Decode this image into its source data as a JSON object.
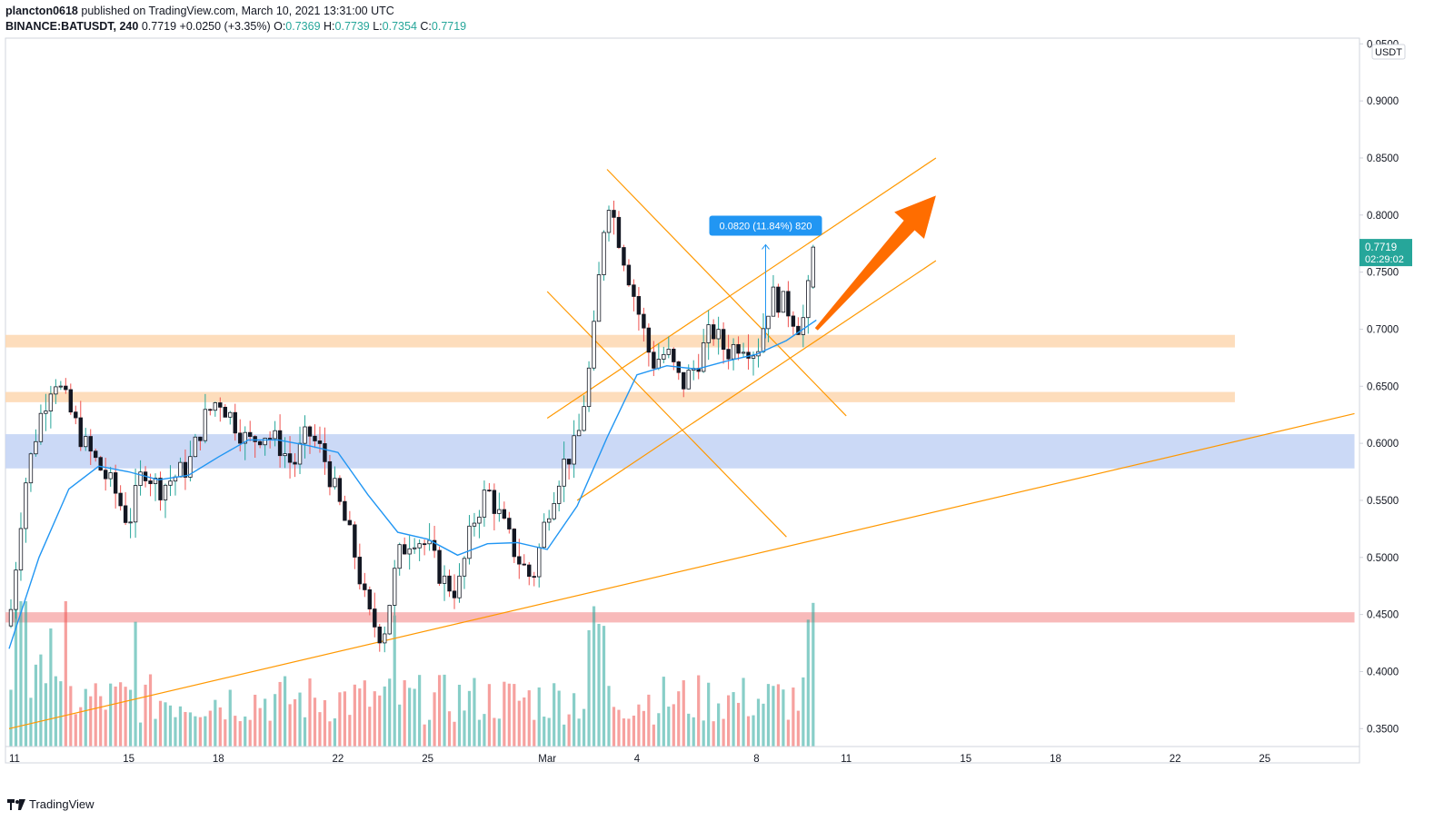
{
  "header": {
    "author": "plancton0618",
    "published_text": "published on TradingView.com, March 10, 2021 13:31:00 UTC",
    "symbol": "BINANCE:BATUSDT, 240",
    "last": "0.7719",
    "change": "+0.0250 (+3.35%)",
    "o_label": "O:",
    "o_value": "0.7369",
    "h_label": "H:",
    "h_value": "0.7739",
    "l_label": "L:",
    "l_value": "0.7354",
    "c_label": "C:",
    "c_value": "0.7719"
  },
  "footer": {
    "brand": "TradingView"
  },
  "colors": {
    "up": "#26a69a",
    "down": "#ef5350",
    "ema": "#2196f3",
    "trend": "#ff9800",
    "resistance_zone": "#fdd9b5",
    "support_zone": "#c5d5f5",
    "low_zone": "#f7b3b3",
    "arrow": "#ff6d00"
  },
  "chart_data": {
    "type": "candlestick",
    "interval": "240",
    "y_axis": {
      "unit": "USDT",
      "ylim": [
        0.32,
        0.955
      ],
      "ticks": [
        "0.9500",
        "0.9000",
        "0.8500",
        "0.8000",
        "0.7500",
        "0.7000",
        "0.6500",
        "0.6000",
        "0.5500",
        "0.5000",
        "0.4500",
        "0.4000",
        "0.3500"
      ]
    },
    "x_axis": {
      "ticks": [
        {
          "label": "11",
          "date": "2021-02-11"
        },
        {
          "label": "15",
          "date": "2021-02-15"
        },
        {
          "label": "18",
          "date": "2021-02-18"
        },
        {
          "label": "22",
          "date": "2021-02-22"
        },
        {
          "label": "25",
          "date": "2021-02-25"
        },
        {
          "label": "Mar",
          "date": "2021-03-01"
        },
        {
          "label": "4",
          "date": "2021-03-04"
        },
        {
          "label": "8",
          "date": "2021-03-08"
        },
        {
          "label": "11",
          "date": "2021-03-11"
        },
        {
          "label": "15",
          "date": "2021-03-15"
        },
        {
          "label": "18",
          "date": "2021-03-18"
        },
        {
          "label": "22",
          "date": "2021-03-22"
        },
        {
          "label": "25",
          "date": "2021-03-25"
        }
      ]
    },
    "last_price": {
      "value": "0.7719",
      "countdown": "02:29:02"
    },
    "measure": {
      "text": "0.0820 (11.84%) 820",
      "from": 0.692,
      "to": 0.774,
      "date": "2021-03-08"
    },
    "price_path": [
      [
        "2021-02-11",
        0.44
      ],
      [
        "2021-02-11",
        0.56
      ],
      [
        "2021-02-12",
        0.62
      ],
      [
        "2021-02-12",
        0.66
      ],
      [
        "2021-02-13",
        0.63
      ],
      [
        "2021-02-13",
        0.6
      ],
      [
        "2021-02-14",
        0.58
      ],
      [
        "2021-02-15",
        0.56
      ],
      [
        "2021-02-15",
        0.53
      ],
      [
        "2021-02-16",
        0.58
      ],
      [
        "2021-02-16",
        0.56
      ],
      [
        "2021-02-17",
        0.57
      ],
      [
        "2021-02-17",
        0.58
      ],
      [
        "2021-02-18",
        0.62
      ],
      [
        "2021-02-18",
        0.64
      ],
      [
        "2021-02-19",
        0.62
      ],
      [
        "2021-02-19",
        0.6
      ],
      [
        "2021-02-20",
        0.61
      ],
      [
        "2021-02-20",
        0.6
      ],
      [
        "2021-02-21",
        0.58
      ],
      [
        "2021-02-21",
        0.61
      ],
      [
        "2021-02-22",
        0.59
      ],
      [
        "2021-02-22",
        0.55
      ],
      [
        "2021-02-23",
        0.51
      ],
      [
        "2021-02-23",
        0.45
      ],
      [
        "2021-02-24",
        0.43
      ],
      [
        "2021-02-24",
        0.5
      ],
      [
        "2021-02-25",
        0.52
      ],
      [
        "2021-02-25",
        0.51
      ],
      [
        "2021-02-26",
        0.48
      ],
      [
        "2021-02-26",
        0.47
      ],
      [
        "2021-02-27",
        0.53
      ],
      [
        "2021-02-27",
        0.56
      ],
      [
        "2021-02-28",
        0.53
      ],
      [
        "2021-02-28",
        0.5
      ],
      [
        "2021-03-01",
        0.48
      ],
      [
        "2021-03-01",
        0.54
      ],
      [
        "2021-03-02",
        0.58
      ],
      [
        "2021-03-02",
        0.6
      ],
      [
        "2021-03-03",
        0.68
      ],
      [
        "2021-03-03",
        0.82
      ],
      [
        "2021-03-04",
        0.77
      ],
      [
        "2021-03-04",
        0.72
      ],
      [
        "2021-03-05",
        0.67
      ],
      [
        "2021-03-05",
        0.68
      ],
      [
        "2021-03-06",
        0.65
      ],
      [
        "2021-03-06",
        0.67
      ],
      [
        "2021-03-07",
        0.7
      ],
      [
        "2021-03-07",
        0.68
      ],
      [
        "2021-03-08",
        0.69
      ],
      [
        "2021-03-08",
        0.68
      ],
      [
        "2021-03-09",
        0.73
      ],
      [
        "2021-03-09",
        0.72
      ],
      [
        "2021-03-10",
        0.7
      ],
      [
        "2021-03-10",
        0.7719
      ]
    ],
    "ema_path": [
      [
        "2021-02-11",
        0.42
      ],
      [
        "2021-02-12",
        0.5
      ],
      [
        "2021-02-13",
        0.56
      ],
      [
        "2021-02-14",
        0.58
      ],
      [
        "2021-02-15",
        0.575
      ],
      [
        "2021-02-16",
        0.568
      ],
      [
        "2021-02-17",
        0.572
      ],
      [
        "2021-02-18",
        0.588
      ],
      [
        "2021-02-19",
        0.603
      ],
      [
        "2021-02-20",
        0.603
      ],
      [
        "2021-02-21",
        0.598
      ],
      [
        "2021-02-22",
        0.592
      ],
      [
        "2021-02-23",
        0.555
      ],
      [
        "2021-02-24",
        0.522
      ],
      [
        "2021-02-25",
        0.516
      ],
      [
        "2021-02-26",
        0.502
      ],
      [
        "2021-02-27",
        0.512
      ],
      [
        "2021-02-28",
        0.513
      ],
      [
        "2021-03-01",
        0.507
      ],
      [
        "2021-03-02",
        0.545
      ],
      [
        "2021-03-03",
        0.605
      ],
      [
        "2021-03-04",
        0.66
      ],
      [
        "2021-03-05",
        0.668
      ],
      [
        "2021-03-06",
        0.665
      ],
      [
        "2021-03-07",
        0.672
      ],
      [
        "2021-03-08",
        0.678
      ],
      [
        "2021-03-09",
        0.69
      ],
      [
        "2021-03-10",
        0.708
      ]
    ],
    "zones": [
      {
        "name": "resistance-zone",
        "from": 0.684,
        "to": 0.695,
        "start": "2021-02-11",
        "end": "2021-03-24"
      },
      {
        "name": "resistance-zone",
        "from": 0.636,
        "to": 0.645,
        "start": "2021-02-11",
        "end": "2021-03-24"
      },
      {
        "name": "support-zone",
        "from": 0.578,
        "to": 0.608,
        "start": "2021-02-11",
        "end": "2021-03-28"
      },
      {
        "name": "low-zone",
        "from": 0.443,
        "to": 0.452,
        "start": "2021-02-11",
        "end": "2021-03-28"
      }
    ],
    "trendlines": [
      {
        "name": "long-support-trendline",
        "from": [
          "2021-02-11",
          0.35
        ],
        "to": [
          "2021-03-28",
          0.626
        ]
      },
      {
        "name": "channel-upper-line",
        "from": [
          "2021-03-01",
          0.622
        ],
        "to": [
          "2021-03-14",
          0.85
        ]
      },
      {
        "name": "channel-lower-line",
        "from": [
          "2021-03-02",
          0.55
        ],
        "to": [
          "2021-03-14",
          0.76
        ]
      },
      {
        "name": "wedge-descending-upper",
        "from": [
          "2021-03-03",
          0.84
        ],
        "to": [
          "2021-03-11",
          0.624
        ]
      },
      {
        "name": "wedge-descending-lower",
        "from": [
          "2021-03-01",
          0.733
        ],
        "to": [
          "2021-03-09",
          0.518
        ]
      }
    ],
    "projection_arrow": {
      "from": [
        "2021-03-10",
        0.7
      ],
      "to": [
        "2021-03-14",
        0.817
      ]
    },
    "volume": {
      "max": 1,
      "note_free": true
    }
  }
}
